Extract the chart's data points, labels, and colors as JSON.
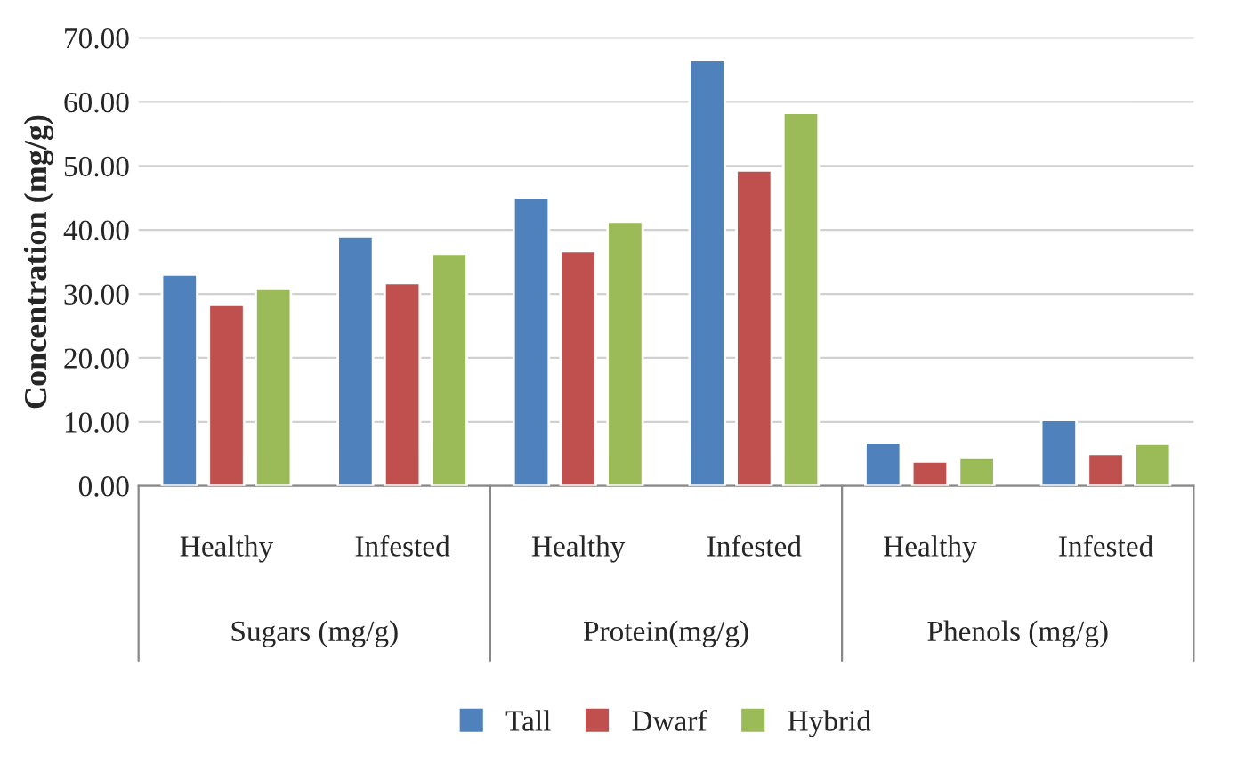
{
  "chart_data": {
    "type": "bar",
    "ylabel": "Concentration (mg/g)",
    "categories": [
      "Healthy",
      "Infested",
      "Healthy",
      "Infested",
      "Healthy",
      "Infested"
    ],
    "annotations": [
      "Sugars (mg/g)",
      "Protein(mg/g)",
      "Phenols (mg/g)"
    ],
    "series": [
      {
        "name": "Tall",
        "color": "#4f81bd",
        "values": [
          33.0,
          39.0,
          45.0,
          66.5,
          6.8,
          10.3
        ]
      },
      {
        "name": "Dwarf",
        "color": "#c0504d",
        "values": [
          28.3,
          31.7,
          36.7,
          49.3,
          3.8,
          5.0
        ]
      },
      {
        "name": "Hybrid",
        "color": "#9bbb59",
        "values": [
          30.8,
          36.3,
          41.3,
          58.3,
          4.5,
          6.6
        ]
      }
    ],
    "ylim": [
      0,
      70
    ],
    "yticks": [
      {
        "value": 0,
        "label": "0.00"
      },
      {
        "value": 10,
        "label": "10.00"
      },
      {
        "value": 20,
        "label": "20.00"
      },
      {
        "value": 30,
        "label": "30.00"
      },
      {
        "value": 40,
        "label": "40.00"
      },
      {
        "value": 50,
        "label": "50.00"
      },
      {
        "value": 60,
        "label": "60.00"
      },
      {
        "value": 70,
        "label": "70.00"
      }
    ],
    "grid": "y",
    "legend": "bottom"
  }
}
